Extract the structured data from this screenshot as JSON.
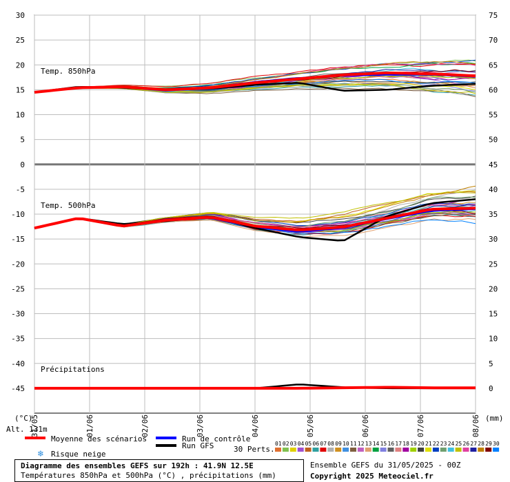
{
  "chart_data": {
    "type": "line",
    "title": "Diagramme des ensembles GEFS sur 192h : 41.9N 12.5E",
    "subtitle": "Températures 850hPa et 500hPa (°C) , précipitations (mm)",
    "run_info": "Ensemble GEFS du 31/05/2025 - 00Z",
    "copyright": "Copyright 2025 Meteociel.fr",
    "altitude": "Alt. 131m",
    "left_axis_unit": "(°C)",
    "right_axis_unit": "(mm)",
    "left_ticks": [
      30,
      25,
      20,
      15,
      10,
      5,
      0,
      -5,
      -10,
      -15,
      -20,
      -25,
      -30,
      -35,
      -40,
      -45
    ],
    "right_ticks": [
      75,
      70,
      65,
      60,
      55,
      50,
      45,
      40,
      35,
      30,
      25,
      20,
      15,
      10,
      5,
      0
    ],
    "ylim_left": [
      -50,
      30
    ],
    "x_dates": [
      "31/05",
      "01/06",
      "02/06",
      "03/06",
      "04/06",
      "05/06",
      "06/06",
      "07/06",
      "08/06"
    ],
    "grid": true,
    "panel_labels": {
      "t850": "Temp. 850hPa",
      "t500": "Temp. 500hPa",
      "precip": "Précipitations"
    },
    "legend": {
      "mean": "Moyenne des scénarios",
      "control": "Run de contrôle",
      "gfs": "Run GFS",
      "snow": "Risque neige",
      "perts_label": "30 Perts.",
      "perts_numbers": [
        "01",
        "02",
        "03",
        "04",
        "05",
        "06",
        "07",
        "08",
        "09",
        "10",
        "11",
        "12",
        "13",
        "14",
        "15",
        "16",
        "17",
        "18",
        "19",
        "20",
        "21",
        "22",
        "23",
        "24",
        "25",
        "26",
        "27",
        "28",
        "29",
        "30"
      ],
      "perts_colors": [
        "#e07030",
        "#80c050",
        "#e0d000",
        "#a050d0",
        "#c06020",
        "#30a0a0",
        "#e00000",
        "#b0b0b0",
        "#d09020",
        "#4090e0",
        "#806040",
        "#c060c0",
        "#e0a070",
        "#00a040",
        "#8080e0",
        "#606060",
        "#e08080",
        "#a000a0",
        "#a0d000",
        "#404040",
        "#e0e000",
        "#0040c0",
        "#70a070",
        "#40c0e0",
        "#c0c000",
        "#e040a0",
        "#2020a0",
        "#c08000",
        "#800000",
        "#0080ff"
      ]
    },
    "series": [
      {
        "name": "Moyenne des scénarios",
        "color": "#ff0000",
        "t850": [
          14.5,
          15.4,
          15.6,
          15.0,
          15.4,
          16.4,
          17.2,
          18.0,
          18.4,
          18.2,
          17.8
        ],
        "t500": [
          -12.8,
          -10.8,
          -12.4,
          -11.2,
          -10.6,
          -12.4,
          -13.2,
          -12.6,
          -10.8,
          -9.0,
          -8.8
        ],
        "precip": [
          0,
          0,
          0,
          0,
          0,
          0,
          0,
          0.1,
          0.2,
          0.1,
          0.1
        ]
      },
      {
        "name": "Run de contrôle",
        "color": "#0000ff",
        "t850": [
          14.5,
          15.5,
          15.5,
          14.8,
          15.4,
          16.6,
          17.4,
          17.8,
          18.0,
          18.0,
          17.6
        ],
        "t500": [
          -12.8,
          -10.9,
          -12.5,
          -11.0,
          -10.8,
          -12.6,
          -13.6,
          -12.8,
          -11.0,
          -9.4,
          -9.0
        ],
        "precip": [
          0,
          0,
          0,
          0,
          0,
          0,
          0,
          0,
          0.3,
          0,
          0
        ]
      },
      {
        "name": "Run GFS",
        "color": "#000000",
        "t850": [
          14.5,
          15.6,
          15.4,
          15.0,
          15.2,
          16.0,
          16.4,
          14.8,
          15.0,
          15.8,
          16.2
        ],
        "t500": [
          -12.8,
          -10.8,
          -12.0,
          -11.4,
          -10.4,
          -12.8,
          -14.6,
          -15.4,
          -10.4,
          -7.8,
          -7.0
        ],
        "precip": [
          0,
          0,
          0,
          0,
          0,
          0,
          0.8,
          0.2,
          0,
          0,
          0
        ]
      }
    ]
  }
}
